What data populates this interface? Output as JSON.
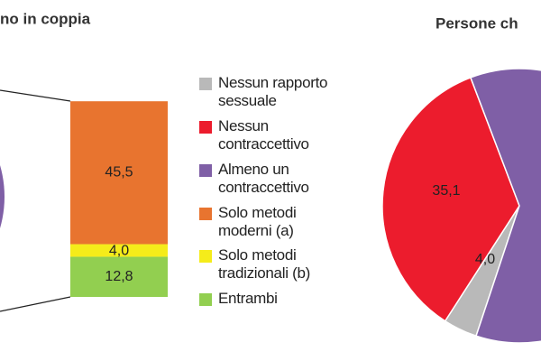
{
  "chart_data": [
    {
      "type": "bar",
      "stacked": true,
      "title": "no in coppia",
      "series": [
        {
          "name": "Solo metodi moderni (a)",
          "color": "#e8742f",
          "values": [
            45.5
          ],
          "value_labels": [
            "45,5"
          ]
        },
        {
          "name": "Solo metodi tradizionali (b)",
          "color": "#f5ec1a",
          "values": [
            4.0
          ],
          "value_labels": [
            "4,0"
          ]
        },
        {
          "name": "Entrambi",
          "color": "#92cf50",
          "values": [
            12.8
          ],
          "value_labels": [
            "12,8"
          ]
        }
      ]
    },
    {
      "type": "pie",
      "title": "Persone ch",
      "categories": [
        "Nessun rapporto sessuale",
        "Nessun contraccettivo",
        "Almeno un contraccettivo"
      ],
      "values": [
        4.0,
        35.1,
        60.9
      ],
      "value_labels": [
        "4,0",
        "35,1",
        null
      ],
      "colors": [
        "#b9b9b9",
        "#ec1c2d",
        "#7f5fa6"
      ]
    }
  ]
}
